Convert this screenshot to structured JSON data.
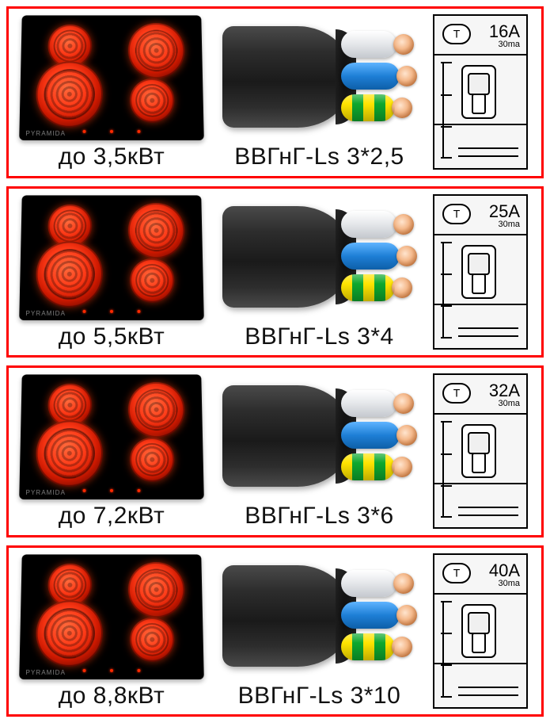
{
  "rows": [
    {
      "power_label": "до 3,5кВт",
      "cable_label": "ВВГнГ-Ls 3*2,5",
      "breaker_amps": "16А",
      "breaker_ma": "30ma"
    },
    {
      "power_label": "до 5,5кВт",
      "cable_label": "ВВГнГ-Ls 3*4",
      "breaker_amps": "25А",
      "breaker_ma": "30ma"
    },
    {
      "power_label": "до 7,2кВт",
      "cable_label": "ВВГнГ-Ls 3*6",
      "breaker_amps": "32А",
      "breaker_ma": "30ma"
    },
    {
      "power_label": "до 8,8кВт",
      "cable_label": "ВВГнГ-Ls 3*10",
      "breaker_amps": "40А",
      "breaker_ma": "30ma"
    }
  ],
  "style": {
    "border_color": "#ff0000",
    "burner_colors": [
      "#ff6a3c",
      "#ff3b18",
      "#cc1800",
      "#6a0800"
    ],
    "cooktop_background": "#000000",
    "wire_colors": {
      "neutral": "#e7e9ec",
      "line": "#1e7fd6",
      "earth_stripes": [
        "#ffe400",
        "#0ea82e"
      ]
    },
    "jacket_color": "#2d2d2d",
    "label_fontsize": 30,
    "brand_text": "PYRAMIDA"
  }
}
